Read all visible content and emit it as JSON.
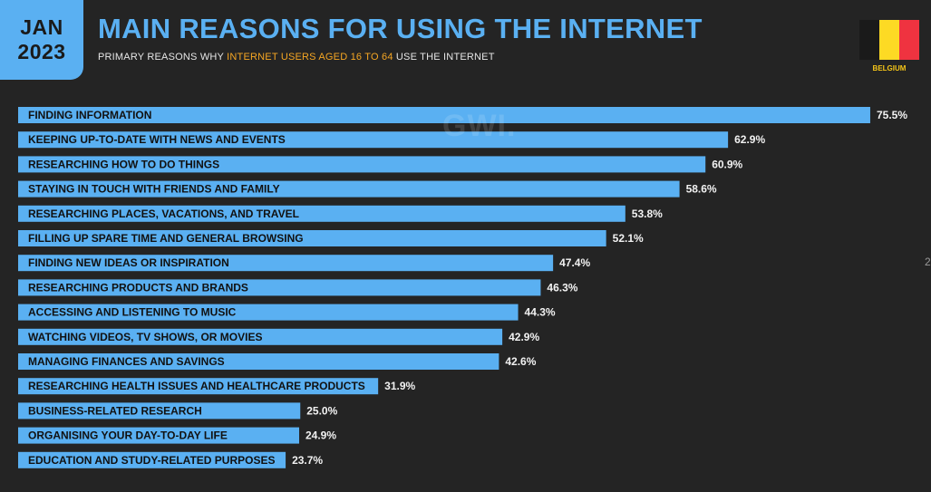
{
  "header": {
    "date_month": "JAN",
    "date_year": "2023",
    "title": "MAIN REASONS FOR USING THE INTERNET",
    "subtitle_pre": "PRIMARY REASONS WHY ",
    "subtitle_highlight": "INTERNET USERS AGED 16 TO 64",
    "subtitle_post": " USE THE INTERNET",
    "country_label": "BELGIUM",
    "watermark": "GWI."
  },
  "colors": {
    "background": "#242424",
    "bar": "#5ab0f2",
    "accent": "#f5a623",
    "flag": [
      "#1a1a1a",
      "#fdda24",
      "#ef3340"
    ]
  },
  "edge_mark": "2",
  "chart_data": {
    "type": "bar",
    "orientation": "horizontal",
    "title": "MAIN REASONS FOR USING THE INTERNET",
    "categories": [
      "FINDING INFORMATION",
      "KEEPING UP-TO-DATE WITH NEWS AND EVENTS",
      "RESEARCHING HOW TO DO THINGS",
      "STAYING IN TOUCH WITH FRIENDS AND FAMILY",
      "RESEARCHING PLACES, VACATIONS, AND TRAVEL",
      "FILLING UP SPARE TIME AND GENERAL BROWSING",
      "FINDING NEW IDEAS OR INSPIRATION",
      "RESEARCHING PRODUCTS AND BRANDS",
      "ACCESSING AND LISTENING TO MUSIC",
      "WATCHING VIDEOS, TV SHOWS, OR MOVIES",
      "MANAGING FINANCES AND SAVINGS",
      "RESEARCHING HEALTH ISSUES AND HEALTHCARE PRODUCTS",
      "BUSINESS-RELATED RESEARCH",
      "ORGANISING YOUR DAY-TO-DAY LIFE",
      "EDUCATION AND STUDY-RELATED PURPOSES"
    ],
    "values": [
      75.5,
      62.9,
      60.9,
      58.6,
      53.8,
      52.1,
      47.4,
      46.3,
      44.3,
      42.9,
      42.6,
      31.9,
      25.0,
      24.9,
      23.7
    ],
    "value_labels": [
      "75.5%",
      "62.9%",
      "60.9%",
      "58.6%",
      "53.8%",
      "52.1%",
      "47.4%",
      "46.3%",
      "44.3%",
      "42.9%",
      "42.6%",
      "31.9%",
      "25.0%",
      "24.9%",
      "23.7%"
    ],
    "unit": "%",
    "xlim": [
      0,
      100
    ],
    "grid": false,
    "legend": "none"
  }
}
